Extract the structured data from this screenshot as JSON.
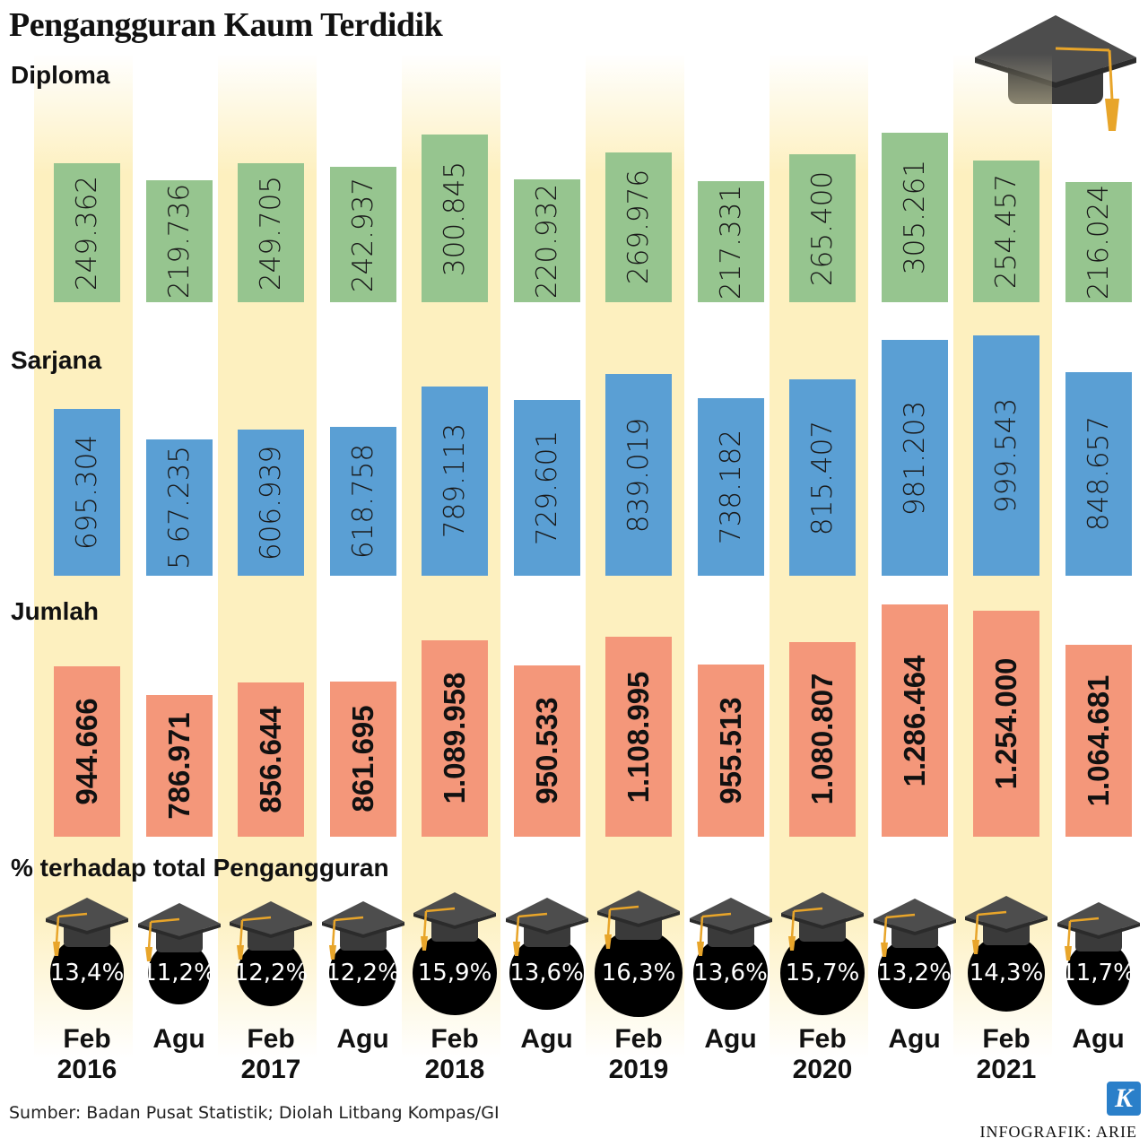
{
  "title": "Pengangguran Kaum Terdidik",
  "sections": {
    "diploma": "Diploma",
    "sarjana": "Sarjana",
    "jumlah": "Jumlah",
    "percent": "% terhadap total Pengangguran"
  },
  "colors": {
    "diploma": "#96c58f",
    "sarjana": "#5a9fd4",
    "jumlah": "#f4977a",
    "band": "#fdf0bf",
    "circle": "#000000"
  },
  "chart_data": {
    "type": "bar",
    "categories": [
      "Feb 2016",
      "Agu",
      "Feb 2017",
      "Agu",
      "Feb 2018",
      "Agu",
      "Feb 2019",
      "Agu",
      "Feb 2020",
      "Agu",
      "Feb 2021",
      "Agu"
    ],
    "periods": [
      {
        "month": "Feb",
        "year": "2016"
      },
      {
        "month": "Agu",
        "year": ""
      },
      {
        "month": "Feb",
        "year": "2017"
      },
      {
        "month": "Agu",
        "year": ""
      },
      {
        "month": "Feb",
        "year": "2018"
      },
      {
        "month": "Agu",
        "year": ""
      },
      {
        "month": "Feb",
        "year": "2019"
      },
      {
        "month": "Agu",
        "year": ""
      },
      {
        "month": "Feb",
        "year": "2020"
      },
      {
        "month": "Agu",
        "year": ""
      },
      {
        "month": "Feb",
        "year": "2021"
      },
      {
        "month": "Agu",
        "year": ""
      }
    ],
    "series": [
      {
        "name": "Diploma",
        "values": [
          249362,
          219736,
          249705,
          242937,
          300845,
          220932,
          269976,
          217331,
          265400,
          305261,
          254457,
          216024
        ],
        "labels": [
          "249.362",
          "219.736",
          "249.705",
          "242.937",
          "300.845",
          "220.932",
          "269.976",
          "217.331",
          "265.400",
          "305.261",
          "254.457",
          "216.024"
        ]
      },
      {
        "name": "Sarjana",
        "values": [
          695304,
          567235,
          606939,
          618758,
          789113,
          729601,
          839019,
          738182,
          815407,
          981203,
          999543,
          848657
        ],
        "labels": [
          "695.304",
          "5 67.235",
          "606.939",
          "618.758",
          "789.113",
          "729.601",
          "839.019",
          "738.182",
          "815.407",
          "981.203",
          "999.543",
          "848.657"
        ]
      },
      {
        "name": "Jumlah",
        "values": [
          944666,
          786971,
          856644,
          861695,
          1089958,
          950533,
          1108995,
          955513,
          1080807,
          1286464,
          1254000,
          1064681
        ],
        "labels": [
          "944.666",
          "786.971",
          "856.644",
          "861.695",
          "1.089.958",
          "950.533",
          "1.108.995",
          "955.513",
          "1.080.807",
          "1.286.464",
          "1.254.000",
          "1.064.681"
        ]
      },
      {
        "name": "% terhadap total Pengangguran",
        "values": [
          13.4,
          11.2,
          12.2,
          12.2,
          15.9,
          13.6,
          16.3,
          13.6,
          15.7,
          13.2,
          14.3,
          11.7
        ],
        "labels": [
          "13,4%",
          "11,2%",
          "12,2%",
          "12,2%",
          "15,9%",
          "13,6%",
          "16,3%",
          "13,6%",
          "15,7%",
          "13,2%",
          "14,3%",
          "11,7%"
        ]
      }
    ]
  },
  "source": "Sumber: Badan Pusat Statistik; Diolah Litbang Kompas/GI",
  "credit": "INFOGRAFIK: ARIE",
  "logo_letter": "K",
  "icons": [
    "graduation-cap-icon"
  ]
}
